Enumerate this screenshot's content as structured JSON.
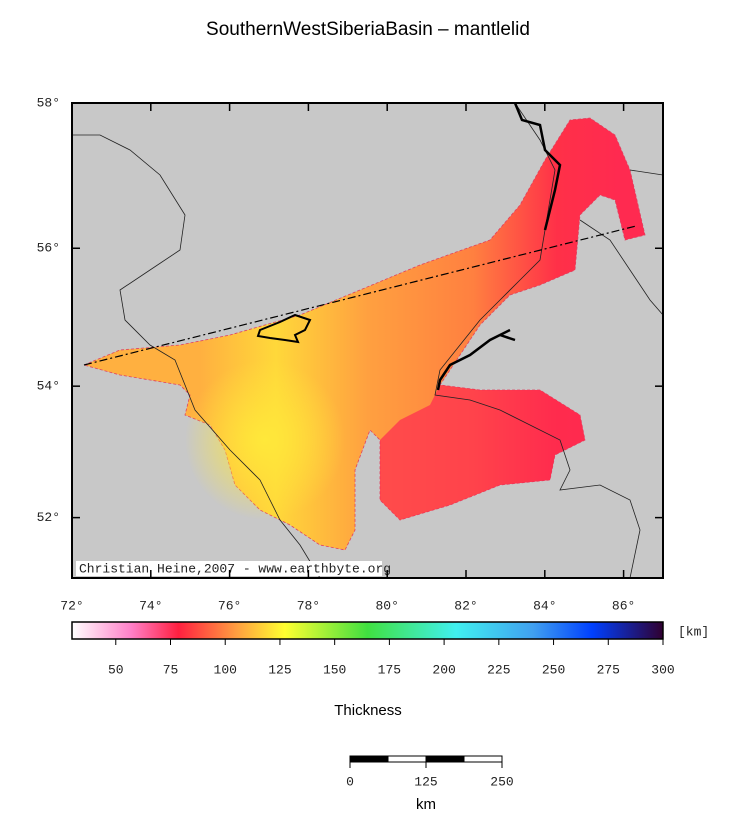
{
  "title": "SouthernWestSiberiaBasin – mantlelid",
  "map": {
    "xlim": [
      72,
      87
    ],
    "ylim": [
      51.05,
      58
    ],
    "xticks": [
      {
        "value": 72,
        "label": "72°"
      },
      {
        "value": 74,
        "label": "74°"
      },
      {
        "value": 76,
        "label": "76°"
      },
      {
        "value": 78,
        "label": "78°"
      },
      {
        "value": 80,
        "label": "80°"
      },
      {
        "value": 82,
        "label": "82°"
      },
      {
        "value": 84,
        "label": "84°"
      },
      {
        "value": 86,
        "label": "86°"
      }
    ],
    "yticks": [
      {
        "value": 52,
        "label": "52°"
      },
      {
        "value": 54,
        "label": "54°"
      },
      {
        "value": 56,
        "label": "56°"
      },
      {
        "value": 58,
        "label": "58°"
      }
    ],
    "credit": "Christian Heine,2007 - www.earthbyte.org"
  },
  "colorbar": {
    "label": "Thickness",
    "unit": "[km]",
    "lim": [
      30,
      300
    ],
    "ticks": [
      50,
      75,
      100,
      125,
      150,
      175,
      200,
      225,
      250,
      275,
      300
    ]
  },
  "scalebar": {
    "lim": [
      0,
      250
    ],
    "ticks": [
      0,
      125,
      250
    ],
    "unit": "km"
  }
}
